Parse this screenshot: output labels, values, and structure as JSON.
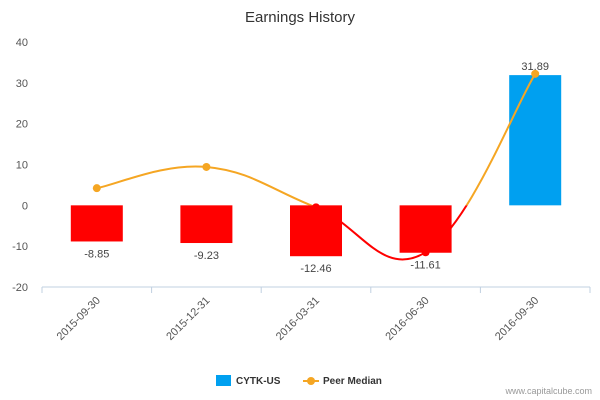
{
  "chart_data": {
    "type": "bar",
    "title": "Earnings History",
    "xlabel": "",
    "ylabel": "",
    "ylim": [
      -20,
      40
    ],
    "yticks": [
      -20,
      -10,
      0,
      10,
      20,
      30,
      40
    ],
    "categories": [
      "2015-09-30",
      "2015-12-31",
      "2016-03-31",
      "2016-06-30",
      "2016-09-30"
    ],
    "series": [
      {
        "name": "CYTK-US",
        "kind": "bar",
        "values": [
          -8.85,
          -9.23,
          -12.46,
          -11.61,
          31.89
        ],
        "labels": [
          "-8.85",
          "-9.23",
          "-12.46",
          "-11.61",
          "31.89"
        ],
        "colors": [
          "#ff0000",
          "#ff0000",
          "#ff0000",
          "#ff0000",
          "#00a0f0"
        ],
        "legend_color": "#00a0f0"
      },
      {
        "name": "Peer Median",
        "kind": "line",
        "values": [
          4.2,
          9.4,
          -0.5,
          -11.5,
          32.2
        ],
        "color": "#f5a623",
        "negative_color": "#ff0000"
      }
    ],
    "legend_position": "bottom",
    "grid": false
  },
  "watermark": "www.capitalcube.com"
}
